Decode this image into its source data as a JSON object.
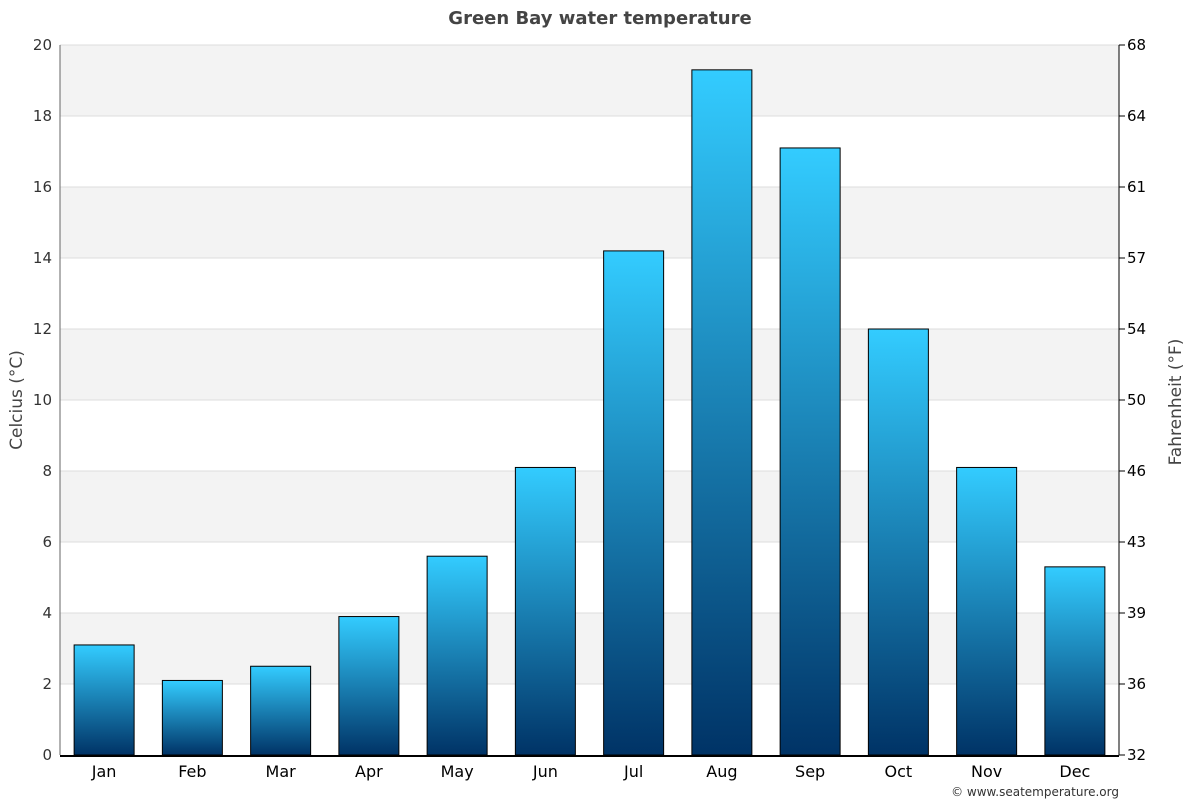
{
  "chart_data": {
    "type": "bar",
    "title": "Green Bay water temperature",
    "categories": [
      "Jan",
      "Feb",
      "Mar",
      "Apr",
      "May",
      "Jun",
      "Jul",
      "Aug",
      "Sep",
      "Oct",
      "Nov",
      "Dec"
    ],
    "series": [
      {
        "values": [
          3.1,
          2.1,
          2.5,
          3.9,
          5.6,
          8.1,
          14.2,
          19.3,
          17.1,
          12.0,
          8.1,
          5.3
        ]
      }
    ],
    "ylabel": "Celcius (°C)",
    "y2label": "Fahrenheit (°F)",
    "ylim": [
      0,
      20
    ],
    "yticks": [
      0,
      2,
      4,
      6,
      8,
      10,
      12,
      14,
      16,
      18,
      20
    ],
    "y2ticks": [
      "32",
      "36",
      "39",
      "43",
      "46",
      "50",
      "54",
      "57",
      "61",
      "64",
      "68"
    ],
    "grid": true,
    "legend": "none",
    "colors": {
      "bar_top": "#33ccff",
      "bar_bottom": "#003366",
      "band": "#f3f3f3",
      "bar_stroke": "#000000"
    }
  },
  "credit": "© www.seatemperature.org"
}
